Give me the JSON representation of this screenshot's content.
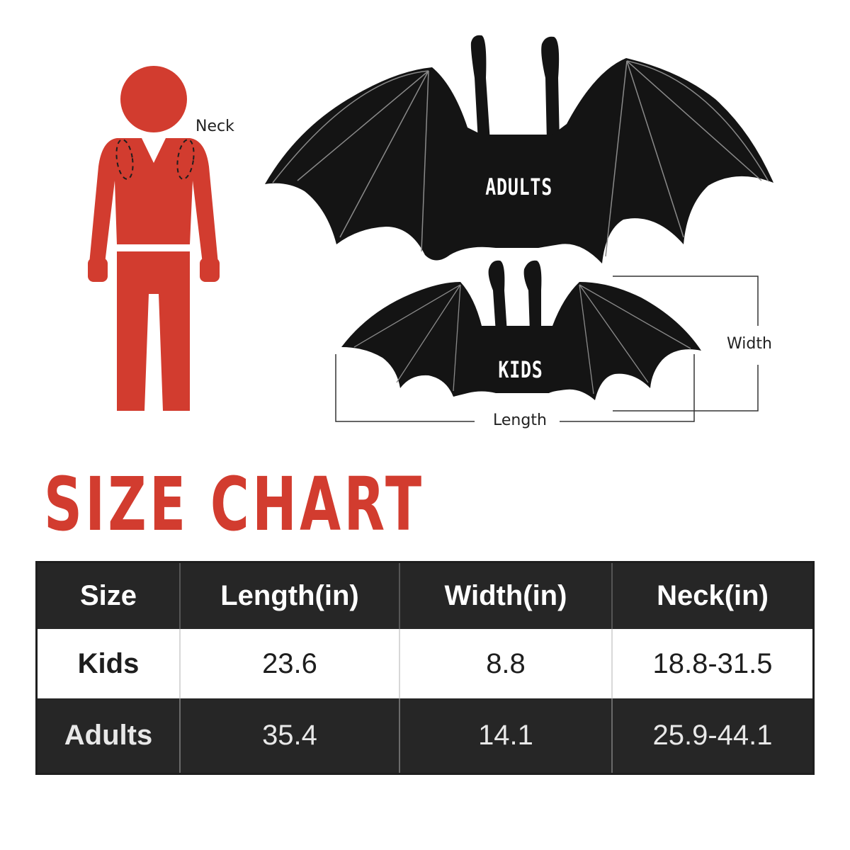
{
  "figure": {
    "neck_label": "Neck",
    "width_label": "Width",
    "length_label": "Length",
    "adults_wing_tag": "ADULTS",
    "kids_wing_tag": "KIDS",
    "person_color": "#d23c2f",
    "wing_color": "#141414"
  },
  "title": "SIZE CHART",
  "table": {
    "headers": [
      "Size",
      "Length(in)",
      "Width(in)",
      "Neck(in)"
    ],
    "rows": [
      [
        "Kids",
        "23.6",
        "8.8",
        "18.8-31.5"
      ],
      [
        "Adults",
        "35.4",
        "14.1",
        "25.9-44.1"
      ]
    ]
  }
}
